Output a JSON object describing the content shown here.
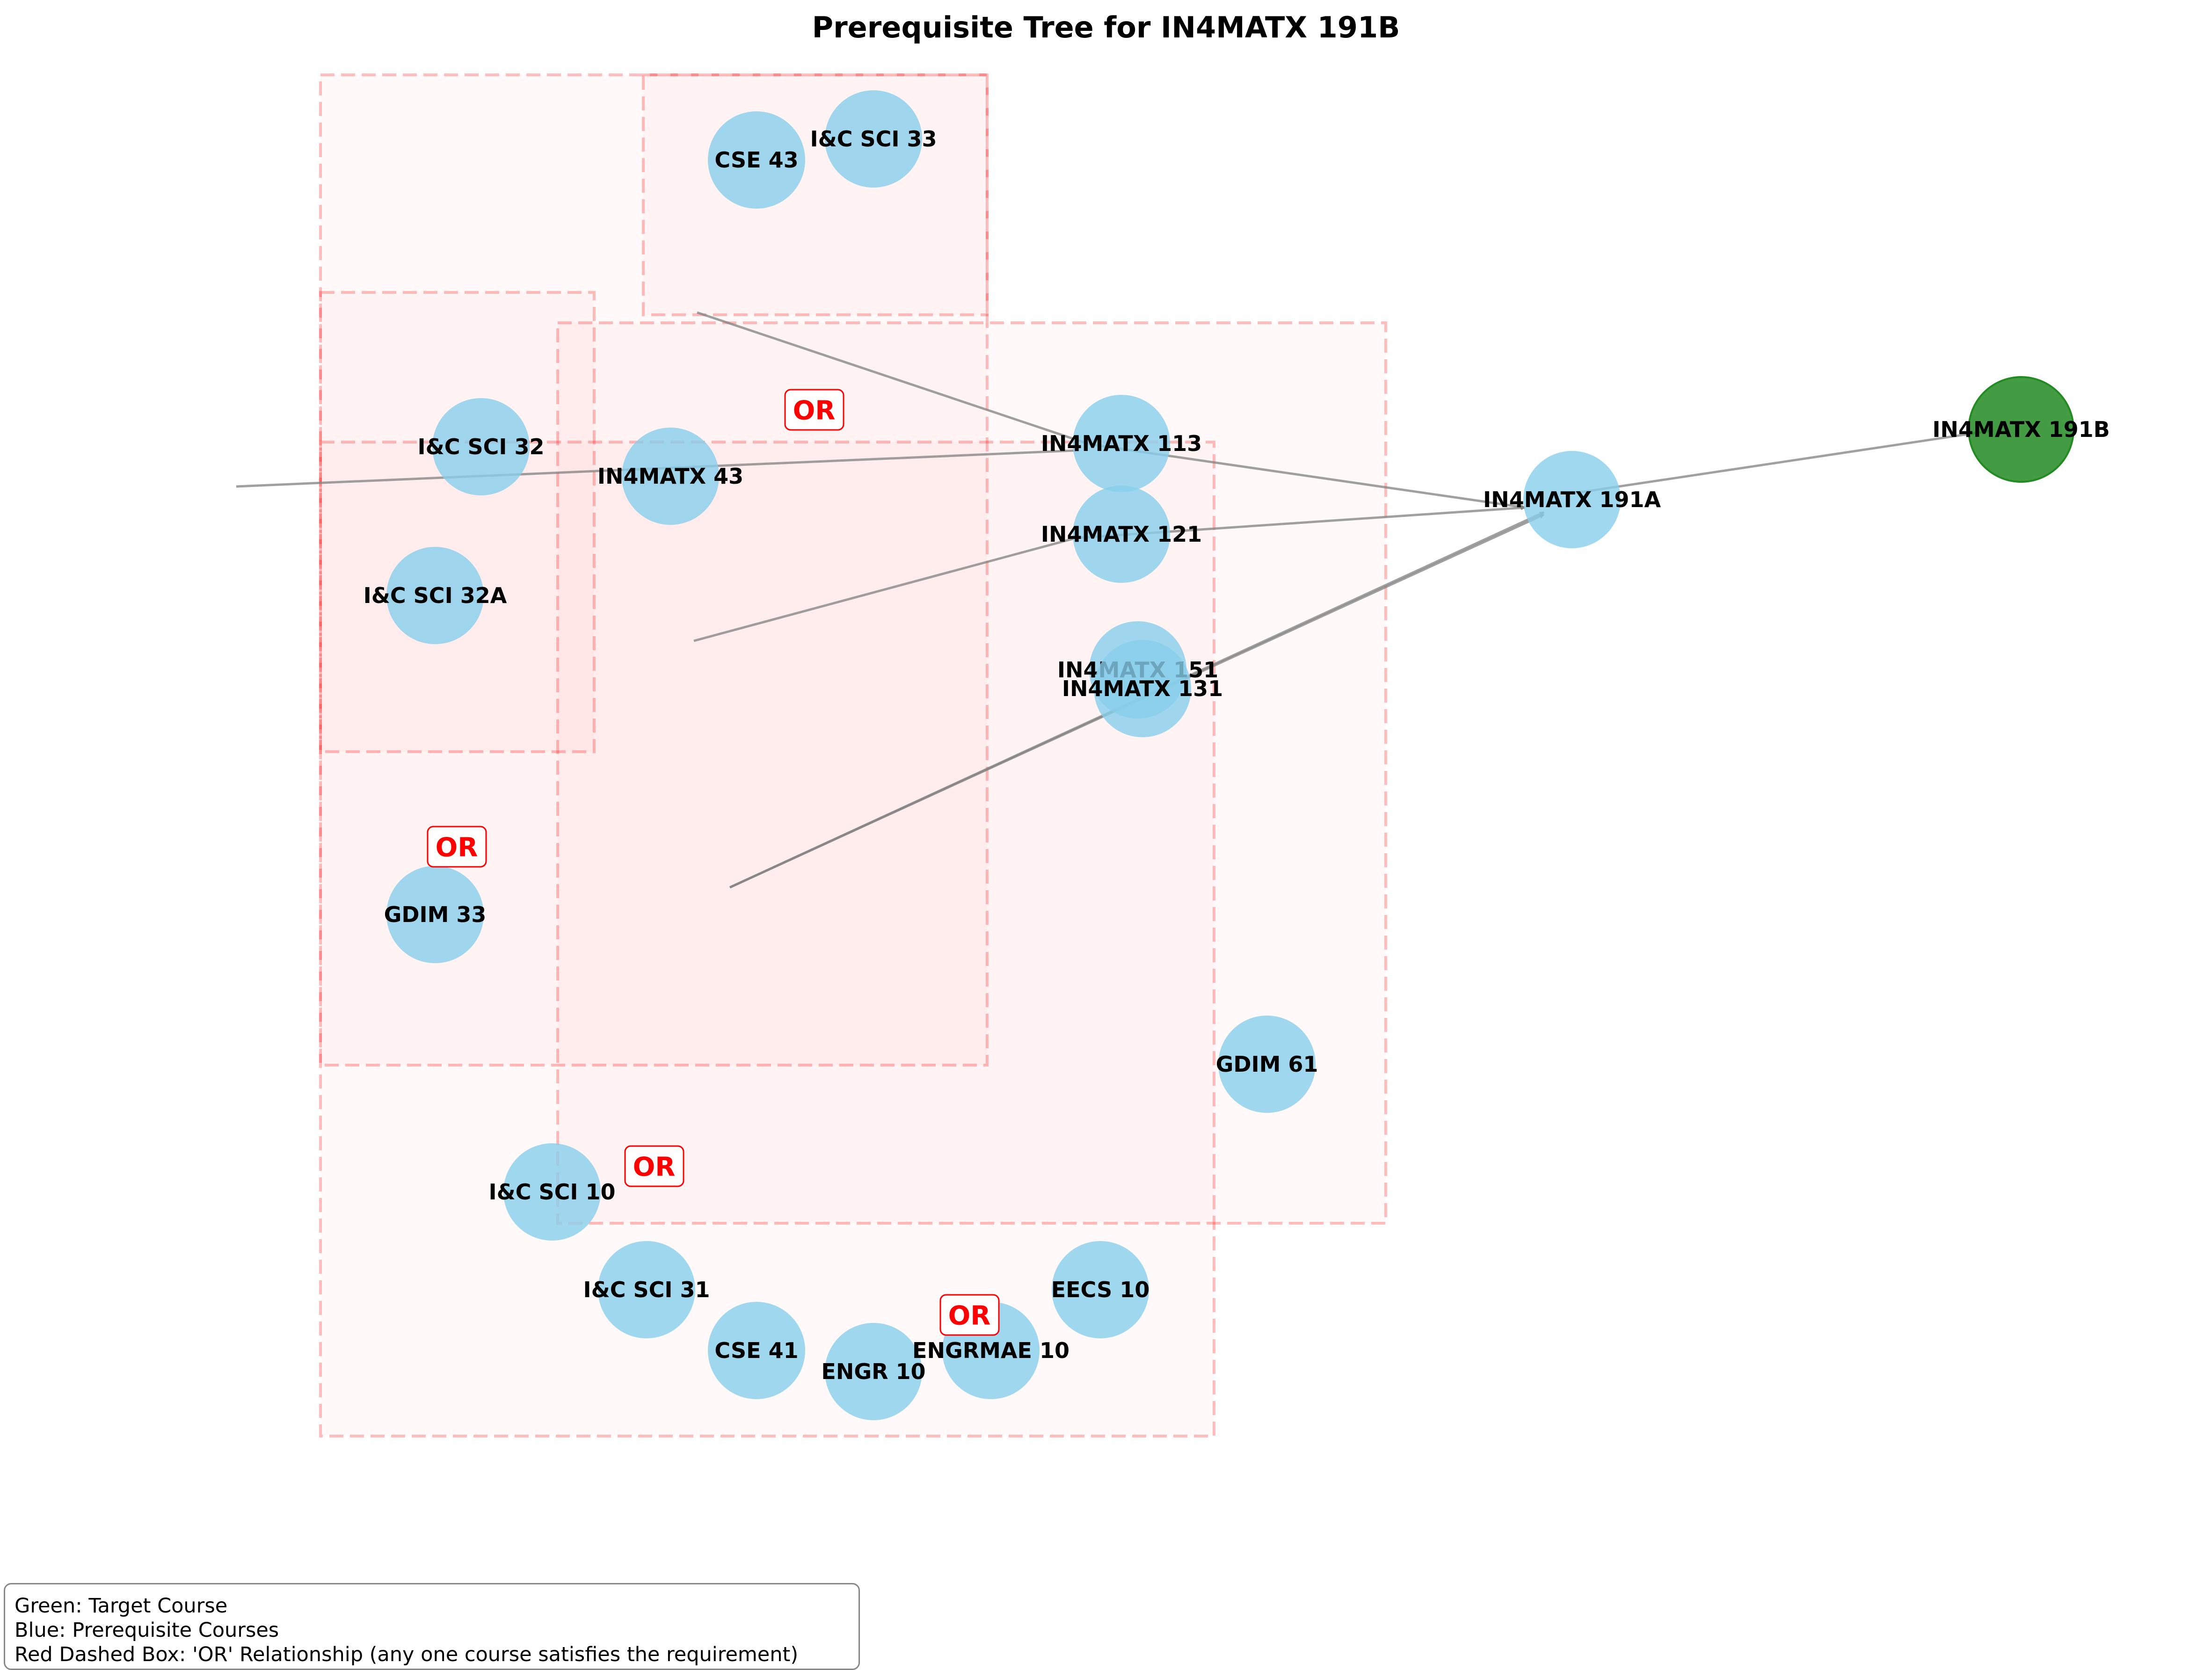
{
  "title": "Prerequisite Tree for IN4MATX 191B",
  "colors": {
    "target": "#228b22",
    "prereq": "#87ceeb",
    "or_box": "#ff0000",
    "edge": "#808080"
  },
  "nodes": [
    {
      "id": "IN4MATX 191B",
      "label": "IN4MATX 191B",
      "role": "target"
    },
    {
      "id": "IN4MATX 191A",
      "label": "IN4MATX 191A",
      "role": "prereq"
    },
    {
      "id": "IN4MATX 113",
      "label": "IN4MATX 113",
      "role": "prereq"
    },
    {
      "id": "IN4MATX 121",
      "label": "IN4MATX 121",
      "role": "prereq"
    },
    {
      "id": "IN4MATX 151",
      "label": "IN4MATX 151",
      "role": "prereq"
    },
    {
      "id": "IN4MATX 131",
      "label": "IN4MATX 131",
      "role": "prereq"
    },
    {
      "id": "IN4MATX 43",
      "label": "IN4MATX 43",
      "role": "prereq"
    },
    {
      "id": "I&C SCI 32",
      "label": "I&C SCI 32",
      "role": "prereq"
    },
    {
      "id": "I&C SCI 32A",
      "label": "I&C SCI 32A",
      "role": "prereq"
    },
    {
      "id": "CSE 43",
      "label": "CSE 43",
      "role": "prereq"
    },
    {
      "id": "I&C SCI 33",
      "label": "I&C SCI 33",
      "role": "prereq"
    },
    {
      "id": "GDIM 33",
      "label": "GDIM 33",
      "role": "prereq"
    },
    {
      "id": "GDIM 61",
      "label": "GDIM 61",
      "role": "prereq"
    },
    {
      "id": "I&C SCI 10",
      "label": "I&C SCI 10",
      "role": "prereq"
    },
    {
      "id": "I&C SCI 31",
      "label": "I&C SCI 31",
      "role": "prereq"
    },
    {
      "id": "CSE 41",
      "label": "CSE 41",
      "role": "prereq"
    },
    {
      "id": "ENGR 10",
      "label": "ENGR 10",
      "role": "prereq"
    },
    {
      "id": "ENGRMAE 10",
      "label": "ENGRMAE 10",
      "role": "prereq"
    },
    {
      "id": "EECS 10",
      "label": "EECS 10",
      "role": "prereq"
    }
  ],
  "edges": [
    {
      "from": "IN4MATX 191A",
      "to": "IN4MATX 191B"
    },
    {
      "from": "IN4MATX 113",
      "to": "IN4MATX 191A"
    },
    {
      "from": "IN4MATX 121",
      "to": "IN4MATX 191A"
    },
    {
      "from": "IN4MATX 131",
      "to": "IN4MATX 191A"
    },
    {
      "from": "IN4MATX 151",
      "to": "IN4MATX 191A"
    }
  ],
  "or_label": "OR",
  "legend": [
    "Green: Target Course",
    "Blue: Prerequisite Courses",
    "Red Dashed Box: 'OR' Relationship (any one course satisfies the requirement)"
  ]
}
